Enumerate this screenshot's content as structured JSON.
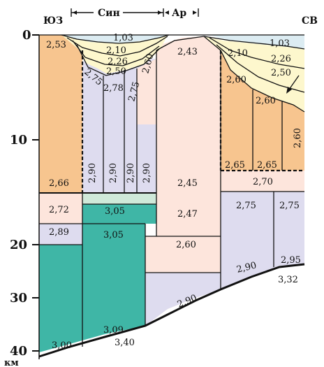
{
  "header": {
    "left_dir": "ЮЗ",
    "right_dir": "СВ",
    "syn": "Син",
    "ar": "Ар"
  },
  "depth_axis": {
    "ticks": [
      "0",
      "10",
      "20",
      "30",
      "40"
    ],
    "unit": "км"
  },
  "colors": {
    "orange": "#f7c58f",
    "lavender": "#dedcef",
    "cream": "#fdf7cd",
    "pink": "#fde5dc",
    "mint": "#cfe9d9",
    "teal": "#3fb6a6",
    "blue_top": "#dcecf2",
    "line": "#111111"
  },
  "values": {
    "v_253": "2,53",
    "v_266": "2,66",
    "v_103a": "1,03",
    "v_210a": "2,10",
    "v_226a": "2,26",
    "v_250a": "2,50",
    "v_275a": "2,75",
    "v_278": "2,78",
    "v_275b": "2,75",
    "v_260a": "2,60",
    "v_290a": "2,90",
    "v_290b": "2,90",
    "v_290c": "2,90",
    "v_290d": "2,90",
    "v_243": "2,43",
    "v_245": "2,45",
    "v_210b": "2,10",
    "v_103b": "1,03",
    "v_226b": "2,26",
    "v_250b": "2,50",
    "v_260b": "2,60",
    "v_260c": "2,60",
    "v_260d": "2,60",
    "v_265a": "2,65",
    "v_265b": "2,65",
    "v_270": "2,70",
    "v_272": "2,72",
    "v_305a": "3,05",
    "v_247": "2,47",
    "v_275c": "2,75",
    "v_275d": "2,75",
    "v_289": "2,89",
    "v_305b": "3,05",
    "v_260e": "2,60",
    "v_295": "2,95",
    "v_290e": "2,90",
    "v_332": "3,32",
    "v_290f": "2,90",
    "v_309": "3,09",
    "v_300": "3,00",
    "v_340": "3,40"
  }
}
